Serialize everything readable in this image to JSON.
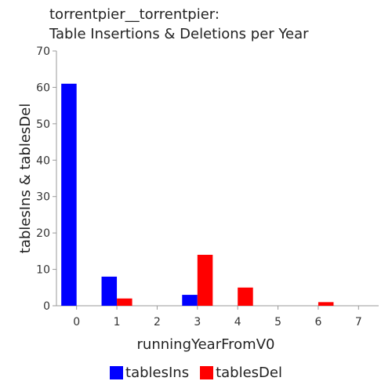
{
  "chart_data": {
    "type": "bar",
    "title_line1": "torrentpier__torrentpier:",
    "title_line2": "Table Insertions & Deletions per Year",
    "xlabel": "runningYearFromV0",
    "ylabel": "tablesIns & tablesDel",
    "ylim": [
      0,
      70
    ],
    "yticks": [
      0,
      10,
      20,
      30,
      40,
      50,
      60,
      70
    ],
    "xlim": [
      -0.5,
      7.5
    ],
    "categories": [
      0,
      1,
      2,
      3,
      4,
      5,
      6,
      7
    ],
    "series": [
      {
        "name": "tablesIns",
        "color": "#0000ff",
        "values": [
          61,
          8,
          0,
          3,
          0,
          0,
          0,
          0
        ]
      },
      {
        "name": "tablesDel",
        "color": "#ff0000",
        "values": [
          0,
          2,
          0,
          14,
          5,
          0,
          1,
          0
        ]
      }
    ],
    "grid": false,
    "legend_position": "bottom"
  }
}
